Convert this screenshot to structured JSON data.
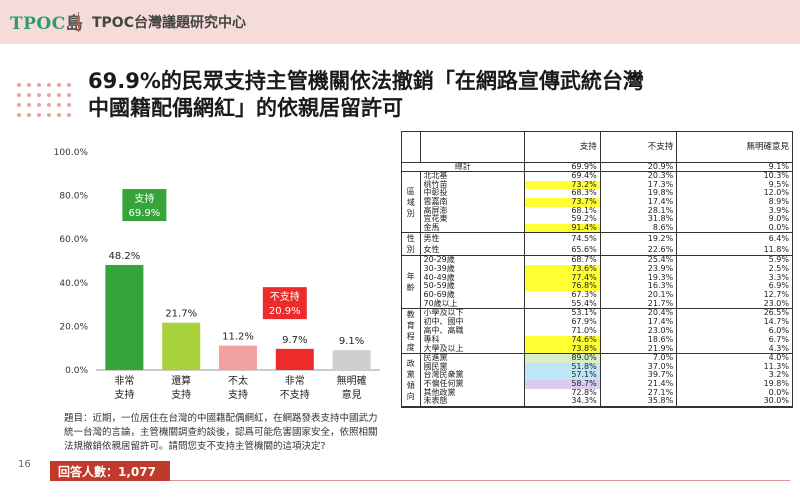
{
  "header": {
    "logo": "TPOC",
    "logo_suffix": "島",
    "org": "TPOC台灣議題研究中心"
  },
  "title_line1": "69.9%的民眾支持主管機關依法撤銷「在網路宣傳武統台灣",
  "title_line2": "中國籍配偶網紅」的依親居留許可",
  "chart_data": {
    "type": "bar",
    "categories": [
      "非常\n支持",
      "還算\n支持",
      "不太\n支持",
      "非常\n不支持",
      "無明確\n意見"
    ],
    "values": [
      48.2,
      21.7,
      11.2,
      9.7,
      9.1
    ],
    "value_labels": [
      "48.2%",
      "21.7%",
      "11.2%",
      "9.7%",
      "9.1%"
    ],
    "colors": [
      "#37a43b",
      "#a7d23b",
      "#f2a1a1",
      "#ee2b2b",
      "#cfcfcf"
    ],
    "ylim": [
      0,
      100
    ],
    "yticks": [
      "0.0%",
      "20.0%",
      "40.0%",
      "60.0%",
      "80.0%",
      "100.0%"
    ],
    "grid": false,
    "annotations": [
      {
        "text1": "支持",
        "text2": "69.9%",
        "color": "#37a43b",
        "textcolor": "#ffffff"
      },
      {
        "text1": "不支持",
        "text2": "20.9%",
        "color": "#ee2b2b",
        "textcolor": "#ffffff"
      }
    ]
  },
  "question": "題目：近期，一位居住在台灣的中國籍配偶網紅，在網路發表支持中國武力統一台灣的言論，主管機關調查約談後，認爲可能危害國家安全，依照相關法規撤銷依親居留許可。請問您支不支持主管機關的這項決定?",
  "page_number": "16",
  "respondents": "回答人數：1,077人",
  "table": {
    "headers": [
      "",
      "",
      "支持",
      "不支持",
      "無明確意見"
    ],
    "total": {
      "label": "總計",
      "values": [
        "69.9%",
        "20.9%",
        "9.1%"
      ]
    },
    "highlight_colors": {
      "yellow": "#ffff33",
      "green": "#d6efc7",
      "blue": "#bfe6f6",
      "purple": "#dccbf0"
    },
    "groups": [
      {
        "name": "區域別",
        "rows": [
          {
            "label": "北北基",
            "values": [
              "69.4%",
              "20.3%",
              "10.3%"
            ],
            "hl": ""
          },
          {
            "label": "桃竹苗",
            "values": [
              "73.2%",
              "17.3%",
              "9.5%"
            ],
            "hl": "yellow"
          },
          {
            "label": "中彰投",
            "values": [
              "68.3%",
              "19.8%",
              "12.0%"
            ],
            "hl": ""
          },
          {
            "label": "雲嘉南",
            "values": [
              "73.7%",
              "17.4%",
              "8.9%"
            ],
            "hl": "yellow"
          },
          {
            "label": "高屏澎",
            "values": [
              "68.1%",
              "28.1%",
              "3.9%"
            ],
            "hl": ""
          },
          {
            "label": "宜花東",
            "values": [
              "59.2%",
              "31.8%",
              "9.0%"
            ],
            "hl": ""
          },
          {
            "label": "金馬",
            "values": [
              "91.4%",
              "8.6%",
              "0.0%"
            ],
            "hl": "yellow"
          }
        ]
      },
      {
        "name": "性別",
        "rows": [
          {
            "label": "男性",
            "values": [
              "74.5%",
              "19.2%",
              "6.4%"
            ],
            "hl": ""
          },
          {
            "label": "女性",
            "values": [
              "65.6%",
              "22.6%",
              "11.8%"
            ],
            "hl": ""
          }
        ]
      },
      {
        "name": "年齡",
        "rows": [
          {
            "label": "20-29歲",
            "values": [
              "68.7%",
              "25.4%",
              "5.9%"
            ],
            "hl": ""
          },
          {
            "label": "30-39歲",
            "values": [
              "73.6%",
              "23.9%",
              "2.5%"
            ],
            "hl": "yellow"
          },
          {
            "label": "40-49歲",
            "values": [
              "77.4%",
              "19.3%",
              "3.3%"
            ],
            "hl": "yellow"
          },
          {
            "label": "50-59歲",
            "values": [
              "76.8%",
              "16.3%",
              "6.9%"
            ],
            "hl": "yellow"
          },
          {
            "label": "60-69歲",
            "values": [
              "67.3%",
              "20.1%",
              "12.7%"
            ],
            "hl": ""
          },
          {
            "label": "70歲以上",
            "values": [
              "55.4%",
              "21.7%",
              "23.0%"
            ],
            "hl": ""
          }
        ]
      },
      {
        "name": "教育程度",
        "rows": [
          {
            "label": "小學及以下",
            "values": [
              "53.1%",
              "20.4%",
              "26.5%"
            ],
            "hl": ""
          },
          {
            "label": "初中、國中",
            "values": [
              "67.9%",
              "17.4%",
              "14.7%"
            ],
            "hl": ""
          },
          {
            "label": "高中、高職",
            "values": [
              "71.0%",
              "23.0%",
              "6.0%"
            ],
            "hl": ""
          },
          {
            "label": "專科",
            "values": [
              "74.6%",
              "18.6%",
              "6.7%"
            ],
            "hl": "yellow"
          },
          {
            "label": "大學及以上",
            "values": [
              "73.8%",
              "21.9%",
              "4.3%"
            ],
            "hl": "yellow"
          }
        ]
      },
      {
        "name": "政黨傾向",
        "rows": [
          {
            "label": "民進黨",
            "values": [
              "89.0%",
              "7.0%",
              "4.0%"
            ],
            "hl": "green"
          },
          {
            "label": "國民黨",
            "values": [
              "51.8%",
              "37.0%",
              "11.3%"
            ],
            "hl": "blue"
          },
          {
            "label": "台灣民衆黨",
            "values": [
              "57.1%",
              "39.7%",
              "3.2%"
            ],
            "hl": "blue"
          },
          {
            "label": "不偏任何黨",
            "values": [
              "58.7%",
              "21.4%",
              "19.8%"
            ],
            "hl": "purple"
          },
          {
            "label": "其他政黨",
            "values": [
              "72.8%",
              "27.1%",
              "0.0%"
            ],
            "hl": ""
          },
          {
            "label": "未表態",
            "values": [
              "34.3%",
              "35.8%",
              "30.0%"
            ],
            "hl": ""
          }
        ]
      }
    ]
  }
}
